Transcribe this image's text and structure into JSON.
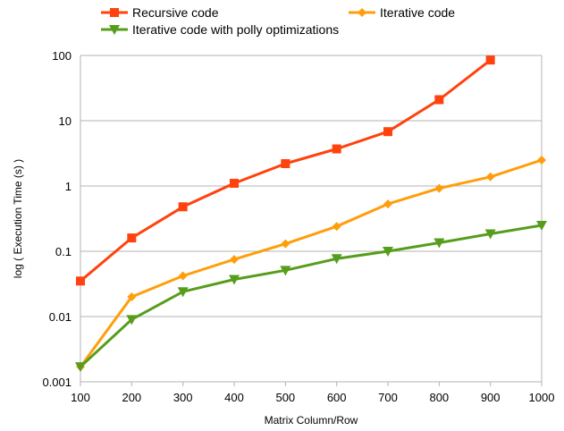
{
  "chart_data": {
    "type": "line",
    "xlabel": "Matrix Column/Row",
    "ylabel": "log ( Execution Time (s) )",
    "yscale": "log",
    "ylim": [
      0.001,
      100
    ],
    "xlim": [
      100,
      1000
    ],
    "x_ticks": [
      "100",
      "200",
      "300",
      "400",
      "500",
      "600",
      "700",
      "800",
      "900",
      "1000"
    ],
    "y_ticks": [
      "0.001",
      "0.01",
      "0.1",
      "1",
      "10",
      "100"
    ],
    "grid": "horizontal",
    "legend_position": "top",
    "series": [
      {
        "name": "Recursive code",
        "color": "#ff420e",
        "marker": "square",
        "x": [
          100,
          200,
          300,
          400,
          500,
          600,
          700,
          800,
          900
        ],
        "values": [
          0.035,
          0.16,
          0.48,
          1.1,
          2.2,
          3.7,
          6.8,
          21,
          85
        ]
      },
      {
        "name": "Iterative code",
        "color": "#ff9e0a",
        "marker": "diamond",
        "x": [
          100,
          200,
          300,
          400,
          500,
          600,
          700,
          800,
          900,
          1000
        ],
        "values": [
          0.0017,
          0.02,
          0.042,
          0.075,
          0.13,
          0.24,
          0.53,
          0.92,
          1.38,
          2.5
        ]
      },
      {
        "name": "Iterative code with polly optimizations",
        "color": "#579d1c",
        "marker": "triangle-down",
        "x": [
          100,
          200,
          300,
          400,
          500,
          600,
          700,
          800,
          900,
          1000
        ],
        "values": [
          0.0017,
          0.009,
          0.024,
          0.037,
          0.051,
          0.077,
          0.1,
          0.135,
          0.185,
          0.25
        ]
      }
    ]
  }
}
